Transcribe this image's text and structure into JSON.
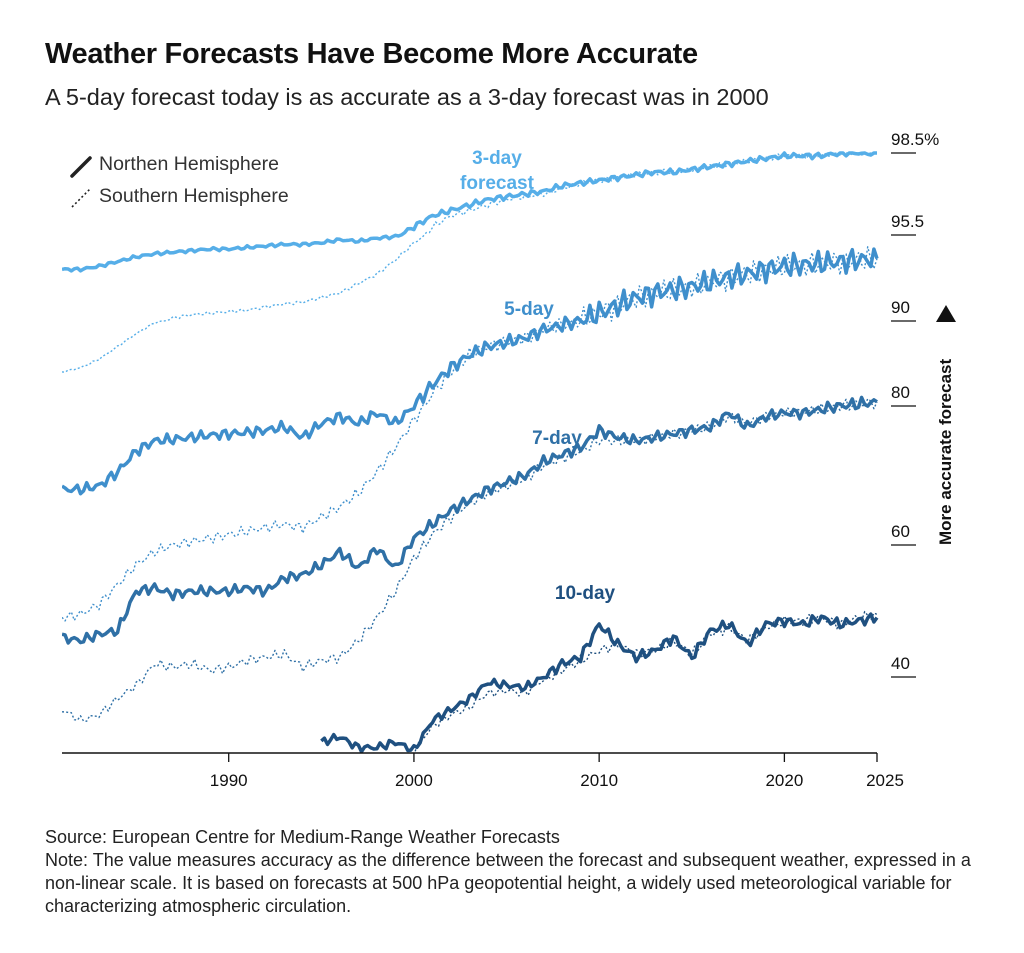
{
  "header": {
    "title": "Weather Forecasts Have Become More Accurate",
    "subtitle": "A 5-day forecast today is as accurate as a 3-day forecast was in 2000"
  },
  "legend": {
    "north": "Northen Hemisphere",
    "south": "Southern Hemisphere",
    "placement": "top-left"
  },
  "footer": {
    "source": "Source: European Centre for Medium-Range Weather Forecasts",
    "note": "Note: The value measures accuracy as the difference between the forecast and subsequent weather, expressed in a non-linear scale. It is based on forecasts at 500 hPa geopotential height, a widely used meteorological variable for characterizing atmospheric circulation."
  },
  "colors": {
    "3-day": "#56aee8",
    "5-day": "#3f8fcc",
    "7-day": "#2f70a6",
    "10-day": "#1f5080",
    "axis": "#111111"
  },
  "chart_data": {
    "type": "line",
    "title": "Weather Forecasts Have Become More Accurate",
    "subtitle": "A 5-day forecast today is as accurate as a 3-day forecast was in 2000",
    "xlabel": "",
    "ylabel": "More accurate forecast",
    "x_ticks": [
      1990,
      2000,
      2010,
      2020,
      2025
    ],
    "y_scale": "non-linear",
    "y_ticks": [
      "98.5%",
      "95.5",
      "90",
      "80",
      "60",
      "40"
    ],
    "xlim": [
      1981,
      2025
    ],
    "grid": false,
    "series": [
      {
        "name": "3-day",
        "label": "3-day forecast",
        "hemisphere": "north",
        "x": [
          1981,
          1982,
          1983,
          1984,
          1985,
          1986,
          1987,
          1988,
          1989,
          1990,
          1991,
          1992,
          1993,
          1994,
          1995,
          1996,
          1997,
          1998,
          1999,
          2000,
          2001,
          2002,
          2003,
          2004,
          2005,
          2006,
          2007,
          2008,
          2009,
          2010,
          2011,
          2012,
          2013,
          2014,
          2015,
          2016,
          2017,
          2018,
          2019,
          2020,
          2021,
          2022,
          2023,
          2024,
          2025
        ],
        "y": [
          93.3,
          93.3,
          93.5,
          93.8,
          94.1,
          94.3,
          94.4,
          94.5,
          94.6,
          94.6,
          94.7,
          94.8,
          94.9,
          94.9,
          95.0,
          95.2,
          95.1,
          95.3,
          95.4,
          95.8,
          96.2,
          96.4,
          96.6,
          96.8,
          96.9,
          97.0,
          97.1,
          97.3,
          97.4,
          97.5,
          97.6,
          97.7,
          97.8,
          97.8,
          97.9,
          98.0,
          98.1,
          98.2,
          98.3,
          98.4,
          98.4,
          98.4,
          98.5,
          98.5,
          98.5
        ]
      },
      {
        "name": "3-day",
        "label": "3-day forecast",
        "hemisphere": "south",
        "x": [
          1981,
          1982,
          1983,
          1984,
          1985,
          1986,
          1987,
          1988,
          1989,
          1990,
          1991,
          1992,
          1993,
          1994,
          1995,
          1996,
          1997,
          1998,
          1999,
          2000,
          2001,
          2002,
          2003,
          2004,
          2005,
          2006,
          2007,
          2008,
          2009,
          2010,
          2011,
          2012,
          2013,
          2014,
          2015,
          2016,
          2017,
          2018,
          2019,
          2020,
          2021,
          2022,
          2023,
          2024,
          2025
        ],
        "y": [
          84.0,
          84.5,
          85.5,
          87.0,
          88.5,
          89.8,
          90.2,
          90.4,
          90.5,
          90.6,
          90.7,
          90.9,
          91.1,
          91.2,
          91.5,
          91.8,
          92.4,
          93.0,
          93.9,
          95.0,
          95.8,
          96.2,
          96.4,
          96.6,
          96.8,
          96.9,
          97.0,
          97.2,
          97.4,
          97.5,
          97.6,
          97.7,
          97.8,
          97.8,
          97.9,
          98.0,
          98.1,
          98.2,
          98.3,
          98.4,
          98.4,
          98.4,
          98.5,
          98.5,
          98.5
        ]
      },
      {
        "name": "5-day",
        "label": "5-day",
        "hemisphere": "north",
        "x": [
          1981,
          1982,
          1983,
          1984,
          1985,
          1986,
          1987,
          1988,
          1989,
          1990,
          1991,
          1992,
          1993,
          1994,
          1995,
          1996,
          1997,
          1998,
          1999,
          2000,
          2001,
          2002,
          2003,
          2004,
          2005,
          2006,
          2007,
          2008,
          2009,
          2010,
          2011,
          2012,
          2013,
          2014,
          2015,
          2016,
          2017,
          2018,
          2019,
          2020,
          2021,
          2022,
          2023,
          2024,
          2025
        ],
        "y": [
          68.0,
          68.0,
          68.5,
          70.5,
          73.5,
          75.0,
          75.2,
          75.5,
          75.8,
          76.0,
          76.2,
          76.5,
          77.0,
          75.5,
          77.5,
          78.5,
          77.5,
          79.0,
          77.5,
          80.0,
          82.5,
          84.5,
          86.0,
          87.0,
          87.5,
          88.0,
          89.0,
          89.5,
          90.0,
          90.5,
          91.0,
          91.5,
          91.8,
          92.0,
          92.2,
          92.5,
          92.8,
          93.0,
          93.3,
          93.5,
          93.6,
          93.7,
          93.8,
          93.9,
          94.0
        ]
      },
      {
        "name": "5-day",
        "label": "5-day",
        "hemisphere": "south",
        "x": [
          1981,
          1982,
          1983,
          1984,
          1985,
          1986,
          1987,
          1988,
          1989,
          1990,
          1991,
          1992,
          1993,
          1994,
          1995,
          1996,
          1997,
          1998,
          1999,
          2000,
          2001,
          2002,
          2003,
          2004,
          2005,
          2006,
          2007,
          2008,
          2009,
          2010,
          2011,
          2012,
          2013,
          2014,
          2015,
          2016,
          2017,
          2018,
          2019,
          2020,
          2021,
          2022,
          2023,
          2024,
          2025
        ],
        "y": [
          49.0,
          49.5,
          51.0,
          54.0,
          57.0,
          59.0,
          60.0,
          60.5,
          61.0,
          61.5,
          62.0,
          62.5,
          63.0,
          62.5,
          64.0,
          65.5,
          67.5,
          70.5,
          74.0,
          78.0,
          81.5,
          84.0,
          86.0,
          87.0,
          87.5,
          88.0,
          89.0,
          89.5,
          90.0,
          90.5,
          91.0,
          91.5,
          91.8,
          92.0,
          92.2,
          92.5,
          92.8,
          93.0,
          93.3,
          93.5,
          93.6,
          93.7,
          93.8,
          93.9,
          94.0
        ]
      },
      {
        "name": "7-day",
        "label": "7-day",
        "hemisphere": "north",
        "x": [
          1981,
          1982,
          1983,
          1984,
          1985,
          1986,
          1987,
          1988,
          1989,
          1990,
          1991,
          1992,
          1993,
          1994,
          1995,
          1996,
          1997,
          1998,
          1999,
          2000,
          2001,
          2002,
          2003,
          2004,
          2005,
          2006,
          2007,
          2008,
          2009,
          2010,
          2011,
          2012,
          2013,
          2014,
          2015,
          2016,
          2017,
          2018,
          2019,
          2020,
          2021,
          2022,
          2023,
          2024,
          2025
        ],
        "y": [
          46.0,
          45.5,
          46.5,
          47.0,
          53.0,
          53.5,
          52.5,
          53.0,
          53.0,
          53.0,
          53.5,
          53.0,
          55.0,
          55.5,
          57.0,
          59.0,
          56.5,
          59.5,
          56.5,
          61.0,
          63.0,
          65.0,
          66.5,
          68.0,
          69.0,
          70.0,
          72.0,
          73.0,
          74.0,
          76.5,
          75.5,
          75.0,
          75.5,
          76.0,
          76.5,
          77.0,
          79.0,
          77.0,
          78.5,
          79.0,
          79.0,
          79.5,
          80.0,
          80.2,
          80.5
        ]
      },
      {
        "name": "7-day",
        "label": "7-day",
        "hemisphere": "south",
        "x": [
          1981,
          1982,
          1983,
          1984,
          1985,
          1986,
          1987,
          1988,
          1989,
          1990,
          1991,
          1992,
          1993,
          1994,
          1995,
          1996,
          1997,
          1998,
          1999,
          2000,
          2001,
          2002,
          2003,
          2004,
          2005,
          2006,
          2007,
          2008,
          2009,
          2010,
          2011,
          2012,
          2013,
          2014,
          2015,
          2016,
          2017,
          2018,
          2019,
          2020,
          2021,
          2022,
          2023,
          2024,
          2025
        ],
        "y": [
          34.0,
          32.0,
          33.0,
          36.0,
          38.5,
          42.0,
          41.5,
          42.0,
          41.0,
          41.5,
          42.5,
          43.0,
          43.5,
          41.5,
          42.5,
          43.0,
          45.5,
          49.0,
          53.0,
          58.0,
          61.5,
          64.0,
          66.0,
          67.5,
          68.5,
          69.5,
          71.5,
          72.5,
          73.5,
          75.0,
          75.0,
          75.0,
          75.5,
          76.0,
          76.5,
          77.0,
          78.5,
          77.5,
          78.5,
          79.0,
          79.2,
          79.5,
          80.0,
          80.2,
          80.5
        ]
      },
      {
        "name": "10-day",
        "label": "10-day",
        "hemisphere": "north",
        "x": [
          1995,
          1996,
          1997,
          1998,
          1999,
          2000,
          2001,
          2002,
          2003,
          2004,
          2005,
          2006,
          2007,
          2008,
          2009,
          2010,
          2011,
          2012,
          2013,
          2014,
          2015,
          2016,
          2017,
          2018,
          2019,
          2020,
          2021,
          2022,
          2023,
          2024,
          2025
        ],
        "y": [
          28.0,
          29.0,
          27.0,
          27.0,
          28.0,
          26.5,
          32.0,
          34.0,
          36.0,
          39.0,
          38.5,
          38.0,
          40.0,
          42.0,
          43.0,
          48.0,
          45.0,
          43.0,
          44.0,
          46.0,
          43.0,
          47.0,
          48.0,
          45.0,
          48.0,
          48.5,
          48.0,
          49.0,
          48.0,
          48.5,
          49.0
        ]
      },
      {
        "name": "10-day",
        "label": "10-day",
        "hemisphere": "south",
        "x": [
          2000,
          2001,
          2002,
          2003,
          2004,
          2005,
          2006,
          2007,
          2008,
          2009,
          2010,
          2011,
          2012,
          2013,
          2014,
          2015,
          2016,
          2017,
          2018,
          2019,
          2020,
          2021,
          2022,
          2023,
          2024,
          2025
        ],
        "y": [
          26.5,
          31.0,
          33.0,
          34.5,
          37.0,
          37.5,
          37.0,
          39.5,
          41.0,
          42.5,
          44.0,
          45.0,
          43.5,
          44.0,
          45.5,
          43.5,
          46.5,
          47.5,
          45.5,
          47.5,
          48.5,
          48.5,
          49.0,
          48.0,
          49.0,
          49.5
        ]
      }
    ]
  }
}
